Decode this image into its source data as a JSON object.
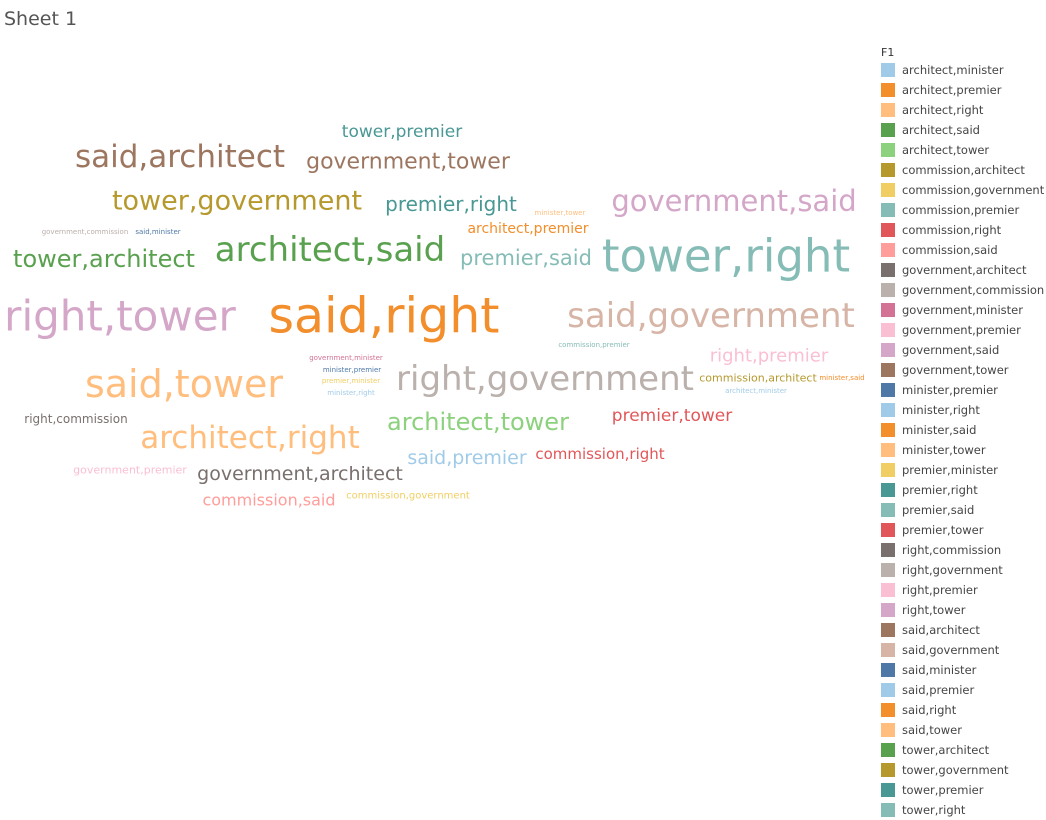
{
  "sheet_title": "Sheet 1",
  "chart_data": {
    "type": "word_cloud",
    "legend_title": "F1",
    "legend": [
      {
        "label": "architect,minister",
        "color": "#a0cbe8"
      },
      {
        "label": "architect,premier",
        "color": "#f28e2b"
      },
      {
        "label": "architect,right",
        "color": "#ffbe7d"
      },
      {
        "label": "architect,said",
        "color": "#59a14f"
      },
      {
        "label": "architect,tower",
        "color": "#8cd17d"
      },
      {
        "label": "commission,architect",
        "color": "#b6992d"
      },
      {
        "label": "commission,government",
        "color": "#f1ce63"
      },
      {
        "label": "commission,premier",
        "color": "#86bcb6"
      },
      {
        "label": "commission,right",
        "color": "#e15759"
      },
      {
        "label": "commission,said",
        "color": "#ff9d9a"
      },
      {
        "label": "government,architect",
        "color": "#79706e"
      },
      {
        "label": "government,commission",
        "color": "#bab0ac"
      },
      {
        "label": "government,minister",
        "color": "#d37295"
      },
      {
        "label": "government,premier",
        "color": "#fabfd2"
      },
      {
        "label": "government,said",
        "color": "#d4a6c8"
      },
      {
        "label": "government,tower",
        "color": "#9d7660"
      },
      {
        "label": "minister,premier",
        "color": "#4e79a7"
      },
      {
        "label": "minister,right",
        "color": "#a0cbe8"
      },
      {
        "label": "minister,said",
        "color": "#f28e2b"
      },
      {
        "label": "minister,tower",
        "color": "#ffbe7d"
      },
      {
        "label": "premier,minister",
        "color": "#f1ce63"
      },
      {
        "label": "premier,right",
        "color": "#499894"
      },
      {
        "label": "premier,said",
        "color": "#86bcb6"
      },
      {
        "label": "premier,tower",
        "color": "#e15759"
      },
      {
        "label": "right,commission",
        "color": "#79706e"
      },
      {
        "label": "right,government",
        "color": "#bab0ac"
      },
      {
        "label": "right,premier",
        "color": "#fabfd2"
      },
      {
        "label": "right,tower",
        "color": "#d4a6c8"
      },
      {
        "label": "said,architect",
        "color": "#9d7660"
      },
      {
        "label": "said,government",
        "color": "#d7b5a6"
      },
      {
        "label": "said,minister",
        "color": "#4e79a7"
      },
      {
        "label": "said,premier",
        "color": "#a0cbe8"
      },
      {
        "label": "said,right",
        "color": "#f28e2b"
      },
      {
        "label": "said,tower",
        "color": "#ffbe7d"
      },
      {
        "label": "tower,architect",
        "color": "#59a14f"
      },
      {
        "label": "tower,government",
        "color": "#b6992d"
      },
      {
        "label": "tower,premier",
        "color": "#499894"
      },
      {
        "label": "tower,right",
        "color": "#86bcb6"
      }
    ],
    "words": [
      {
        "text": "said,right",
        "weight": 49,
        "color": "#f28e2b"
      },
      {
        "text": "tower,right",
        "weight": 45,
        "color": "#86bcb6"
      },
      {
        "text": "right,tower",
        "weight": 42,
        "color": "#d4a6c8"
      },
      {
        "text": "said,tower",
        "weight": 38,
        "color": "#ffbe7d"
      },
      {
        "text": "right,government",
        "weight": 34,
        "color": "#bab0ac"
      },
      {
        "text": "said,government",
        "weight": 34,
        "color": "#d7b5a6"
      },
      {
        "text": "architect,said",
        "weight": 34,
        "color": "#59a14f"
      },
      {
        "text": "said,architect",
        "weight": 31,
        "color": "#9d7660"
      },
      {
        "text": "architect,right",
        "weight": 31,
        "color": "#ffbe7d"
      },
      {
        "text": "government,said",
        "weight": 29,
        "color": "#d4a6c8"
      },
      {
        "text": "tower,government",
        "weight": 27,
        "color": "#b6992d"
      },
      {
        "text": "tower,architect",
        "weight": 24,
        "color": "#59a14f"
      },
      {
        "text": "architect,tower",
        "weight": 24,
        "color": "#8cd17d"
      },
      {
        "text": "government,tower",
        "weight": 22,
        "color": "#9d7660"
      },
      {
        "text": "premier,said",
        "weight": 21,
        "color": "#86bcb6"
      },
      {
        "text": "premier,right",
        "weight": 20,
        "color": "#499894"
      },
      {
        "text": "said,premier",
        "weight": 19,
        "color": "#a0cbe8"
      },
      {
        "text": "government,architect",
        "weight": 19,
        "color": "#79706e"
      },
      {
        "text": "right,premier",
        "weight": 18,
        "color": "#fabfd2"
      },
      {
        "text": "tower,premier",
        "weight": 17,
        "color": "#499894"
      },
      {
        "text": "premier,tower",
        "weight": 17,
        "color": "#e15759"
      },
      {
        "text": "commission,said",
        "weight": 16,
        "color": "#ff9d9a"
      },
      {
        "text": "commission,right",
        "weight": 15,
        "color": "#e15759"
      },
      {
        "text": "architect,premier",
        "weight": 14,
        "color": "#f28e2b"
      },
      {
        "text": "right,commission",
        "weight": 12,
        "color": "#79706e"
      },
      {
        "text": "government,premier",
        "weight": 11,
        "color": "#fabfd2"
      },
      {
        "text": "commission,architect",
        "weight": 11,
        "color": "#b6992d"
      },
      {
        "text": "commission,government",
        "weight": 10,
        "color": "#f1ce63"
      },
      {
        "text": "minister,tower",
        "weight": 7,
        "color": "#ffbe7d"
      },
      {
        "text": "government,minister",
        "weight": 7,
        "color": "#d37295"
      },
      {
        "text": "minister,premier",
        "weight": 7,
        "color": "#4e79a7"
      },
      {
        "text": "premier,minister",
        "weight": 7,
        "color": "#f1ce63"
      },
      {
        "text": "minister,right",
        "weight": 7,
        "color": "#a0cbe8"
      },
      {
        "text": "minister,said",
        "weight": 7,
        "color": "#f28e2b"
      },
      {
        "text": "architect,minister",
        "weight": 7,
        "color": "#a0cbe8"
      },
      {
        "text": "commission,premier",
        "weight": 7,
        "color": "#86bcb6"
      },
      {
        "text": "government,commission",
        "weight": 7,
        "color": "#bab0ac"
      },
      {
        "text": "said,minister",
        "weight": 7,
        "color": "#4e79a7"
      }
    ]
  }
}
